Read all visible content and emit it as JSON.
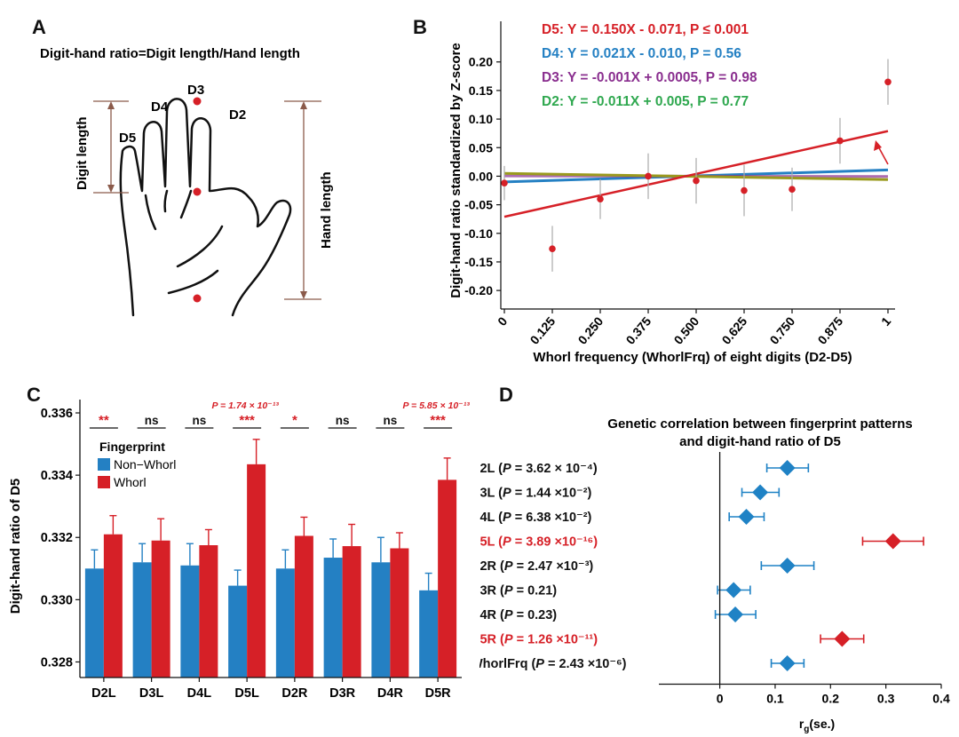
{
  "panels": {
    "A": "A",
    "B": "B",
    "C": "C",
    "D": "D"
  },
  "colors": {
    "red": "#d62027",
    "blue": "#2480c3",
    "purple": "#8a2f8f",
    "green": "#2fa84f",
    "olive": "#9a9a1e",
    "diamond": "#1f82c5"
  },
  "panel_a": {
    "title": "Digit-hand ratio=Digit length/Hand length",
    "digit_labels": [
      "D5",
      "D4",
      "D3",
      "D2"
    ],
    "digit_length_label": "Digit length",
    "hand_length_label": "Hand length"
  },
  "chart_data": [
    {
      "type": "line",
      "panel": "B",
      "ylabel": "Digit-hand ratio standardized by Z-score",
      "xlabel": "Whorl frequency (WhorlFrq) of eight digits (D2-D5)",
      "x_ticks": [
        "0",
        "0.125",
        "0.250",
        "0.375",
        "0.500",
        "0.625",
        "0.750",
        "0.875",
        "1"
      ],
      "y_ticks": [
        "0.20",
        "0.15",
        "0.10",
        "0.05",
        "0.00",
        "-0.05",
        "-0.10",
        "-0.15",
        "-0.20"
      ],
      "xlim": [
        0,
        1
      ],
      "ylim": [
        -0.22,
        0.24
      ],
      "points": {
        "x": [
          0,
          0.125,
          0.25,
          0.375,
          0.5,
          0.625,
          0.75,
          0.875,
          1
        ],
        "y": [
          -0.012,
          -0.127,
          -0.04,
          0.0,
          -0.008,
          -0.025,
          -0.023,
          0.062,
          0.165
        ],
        "err": [
          0.03,
          0.04,
          0.035,
          0.04,
          0.04,
          0.045,
          0.038,
          0.04,
          0.04
        ]
      },
      "series": [
        {
          "name": "D5: Y = 0.150X - 0.071, P ≤ 0.001",
          "slope": 0.15,
          "intercept": -0.071,
          "color": "#d62027"
        },
        {
          "name": "D4: Y = 0.021X - 0.010, P = 0.56",
          "slope": 0.021,
          "intercept": -0.01,
          "color": "#2480c3"
        },
        {
          "name": "D3: Y = -0.001X + 0.0005, P = 0.98",
          "slope": -0.001,
          "intercept": 0.0005,
          "color": "#8a2f8f"
        },
        {
          "name": "D2: Y = -0.011X + 0.005, P = 0.77",
          "slope": -0.011,
          "intercept": 0.005,
          "color": "#2fa84f"
        }
      ]
    },
    {
      "type": "bar",
      "panel": "C",
      "ylabel": "Digit-hand ratio of D5",
      "categories": [
        "D2L",
        "D3L",
        "D4L",
        "D5L",
        "D2R",
        "D3R",
        "D4R",
        "D5R"
      ],
      "ylim": [
        0.3275,
        0.3362
      ],
      "y_ticks": [
        "0.336",
        "0.334",
        "0.332",
        "0.330",
        "0.328"
      ],
      "legend_title": "Fingerprint",
      "series": [
        {
          "name": "Non−Whorl",
          "color": "#2480c3",
          "values": [
            0.331,
            0.3312,
            0.3311,
            0.33045,
            0.331,
            0.33135,
            0.3312,
            0.3303
          ],
          "err": [
            0.0006,
            0.0006,
            0.0007,
            0.0005,
            0.0006,
            0.0006,
            0.0008,
            0.00055
          ]
        },
        {
          "name": "Whorl",
          "color": "#d62027",
          "values": [
            0.3321,
            0.3319,
            0.33175,
            0.33435,
            0.33205,
            0.33172,
            0.33165,
            0.33385
          ],
          "err": [
            0.0006,
            0.0007,
            0.0005,
            0.0008,
            0.0006,
            0.0007,
            0.0005,
            0.0007
          ]
        }
      ],
      "sig": [
        "**",
        "ns",
        "ns",
        "***",
        "*",
        "ns",
        "ns",
        "***"
      ],
      "sig_red": [
        true,
        false,
        false,
        true,
        true,
        false,
        false,
        true
      ],
      "p_annotations": [
        {
          "category": "D5L",
          "text": "P = 1.74 × 10⁻¹³"
        },
        {
          "category": "D5R",
          "text": "P = 5.85 × 10⁻¹³"
        }
      ]
    },
    {
      "type": "forest",
      "panel": "D",
      "title_line1": "Genetic correlation between fingerprint patterns",
      "title_line2": "and digit-hand ratio of D5",
      "xlabel": "r",
      "xlabel_sub": "g",
      "xlabel_suffix": "(se.)",
      "x_ticks": [
        "0",
        "0.1",
        "0.2",
        "0.3",
        "0.4"
      ],
      "xlim": [
        -0.11,
        0.4
      ],
      "rows": [
        {
          "label": "D2L",
          "p": "3.62 × 10⁻⁴",
          "rg": 0.122,
          "lo": 0.085,
          "hi": 0.16,
          "red": false
        },
        {
          "label": "D3L",
          "p": "1.44 ×10⁻²",
          "rg": 0.073,
          "lo": 0.04,
          "hi": 0.107,
          "red": false
        },
        {
          "label": "D4L",
          "p": "6.38 ×10⁻²",
          "rg": 0.048,
          "lo": 0.017,
          "hi": 0.08,
          "red": false
        },
        {
          "label": "D5L",
          "p": "3.89 ×10⁻¹⁶",
          "rg": 0.313,
          "lo": 0.258,
          "hi": 0.368,
          "red": true
        },
        {
          "label": "D2R",
          "p": "2.47 ×10⁻³",
          "rg": 0.122,
          "lo": 0.075,
          "hi": 0.17,
          "red": false
        },
        {
          "label": "D3R",
          "p": "0.21",
          "rg": 0.025,
          "lo": -0.004,
          "hi": 0.055,
          "red": false
        },
        {
          "label": "D4R",
          "p": "0.23",
          "rg": 0.028,
          "lo": -0.008,
          "hi": 0.065,
          "red": false
        },
        {
          "label": "D5R",
          "p": "1.26 ×10⁻¹¹",
          "rg": 0.221,
          "lo": 0.182,
          "hi": 0.26,
          "red": true
        },
        {
          "label": "WhorlFrq",
          "p": "2.43 ×10⁻⁶",
          "rg": 0.122,
          "lo": 0.093,
          "hi": 0.152,
          "red": false
        }
      ]
    }
  ]
}
